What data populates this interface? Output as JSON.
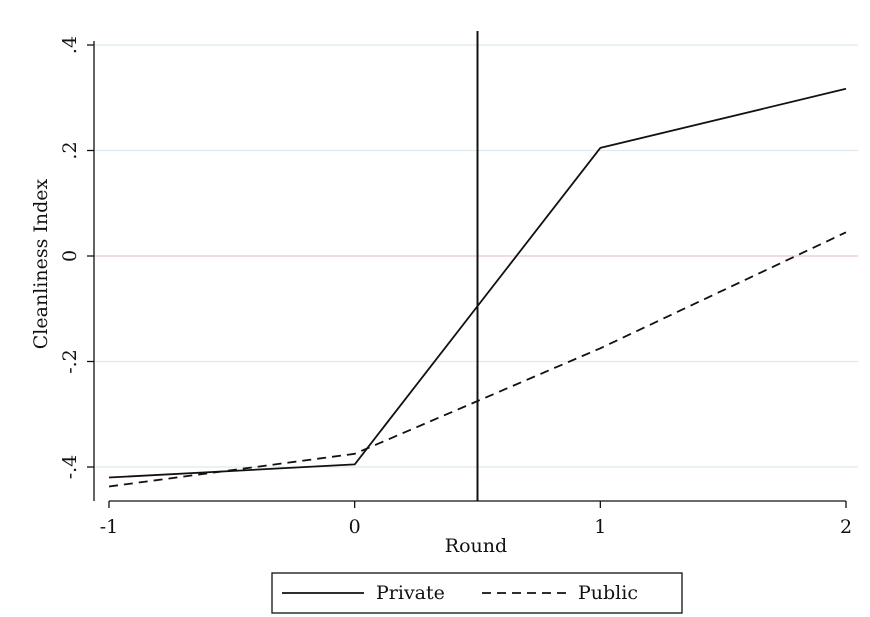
{
  "chart_data": {
    "type": "line",
    "title": "",
    "xlabel": "Round",
    "ylabel": "Cleanliness Index",
    "x": [
      -1,
      0,
      1,
      2
    ],
    "xlim": [
      -1,
      2
    ],
    "ylim": [
      -0.4,
      0.4
    ],
    "x_ticks": [
      {
        "value": -1,
        "label": "-1"
      },
      {
        "value": 0,
        "label": "0"
      },
      {
        "value": 1,
        "label": "1"
      },
      {
        "value": 2,
        "label": "2"
      }
    ],
    "y_ticks": [
      {
        "value": -0.4,
        "label": "-.4"
      },
      {
        "value": -0.2,
        "label": "-.2"
      },
      {
        "value": 0,
        "label": "0"
      },
      {
        "value": 0.2,
        "label": ".2"
      },
      {
        "value": 0.4,
        "label": ".4"
      }
    ],
    "grid": true,
    "reference_lines": {
      "vertical_x": 0.5,
      "horizontal_y": 0
    },
    "series": [
      {
        "name": "Private",
        "style": "solid",
        "color": "#111111",
        "values": [
          -0.42,
          -0.395,
          0.205,
          0.317
        ]
      },
      {
        "name": "Public",
        "style": "dashed",
        "color": "#111111",
        "values": [
          -0.437,
          -0.375,
          -0.175,
          0.045
        ]
      }
    ],
    "legend": {
      "position": "bottom"
    },
    "colors": {
      "grid": "#dfe9ef",
      "zero_line": "#e8c8c8",
      "axis": "#111111"
    }
  }
}
